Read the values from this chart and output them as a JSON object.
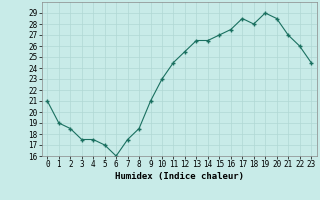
{
  "x": [
    0,
    1,
    2,
    3,
    4,
    5,
    6,
    7,
    8,
    9,
    10,
    11,
    12,
    13,
    14,
    15,
    16,
    17,
    18,
    19,
    20,
    21,
    22,
    23
  ],
  "y": [
    21,
    19,
    18.5,
    17.5,
    17.5,
    17,
    16,
    17.5,
    18.5,
    21,
    23,
    24.5,
    25.5,
    26.5,
    26.5,
    27,
    27.5,
    28.5,
    28,
    29,
    28.5,
    27,
    26,
    24.5
  ],
  "line_color": "#1a7060",
  "marker_color": "#1a7060",
  "bg_color": "#c8ebe8",
  "grid_color": "#b0d8d4",
  "text_color": "#000000",
  "xlabel": "Humidex (Indice chaleur)",
  "ylim": [
    16,
    30
  ],
  "xlim": [
    -0.5,
    23.5
  ],
  "yticks": [
    16,
    17,
    18,
    19,
    20,
    21,
    22,
    23,
    24,
    25,
    26,
    27,
    28,
    29
  ],
  "xticks": [
    0,
    1,
    2,
    3,
    4,
    5,
    6,
    7,
    8,
    9,
    10,
    11,
    12,
    13,
    14,
    15,
    16,
    17,
    18,
    19,
    20,
    21,
    22,
    23
  ],
  "xtick_labels": [
    "0",
    "1",
    "2",
    "3",
    "4",
    "5",
    "6",
    "7",
    "8",
    "9",
    "10",
    "11",
    "12",
    "13",
    "14",
    "15",
    "16",
    "17",
    "18",
    "19",
    "20",
    "21",
    "22",
    "23"
  ],
  "label_fontsize": 6.5,
  "tick_fontsize": 5.5
}
